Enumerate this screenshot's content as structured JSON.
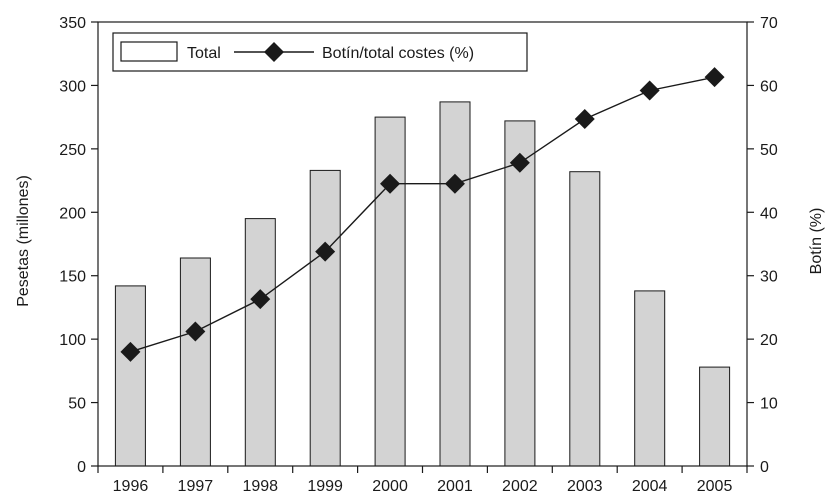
{
  "chart_data": {
    "type": "bar+line",
    "categories": [
      "1996",
      "1997",
      "1998",
      "1999",
      "2000",
      "2001",
      "2002",
      "2003",
      "2004",
      "2005"
    ],
    "series": [
      {
        "name": "Total",
        "type": "bar",
        "axis": "left",
        "values": [
          142,
          164,
          195,
          233,
          275,
          287,
          272,
          232,
          138,
          78
        ],
        "color": "#d3d3d3"
      },
      {
        "name": "Botín/total costes (%)",
        "type": "line",
        "axis": "right",
        "values": [
          18,
          21.2,
          26.3,
          33.8,
          44.5,
          44.5,
          47.8,
          54.7,
          59.2,
          61.3
        ],
        "color": "#1a1a1a"
      }
    ],
    "ylabel": "Pesetas (millones)",
    "y2label": "Botín (%)",
    "ylim": [
      0,
      350
    ],
    "y2lim": [
      0,
      70
    ],
    "yticks": [
      0,
      50,
      100,
      150,
      200,
      250,
      300,
      350
    ],
    "y2ticks": [
      0,
      10,
      20,
      30,
      40,
      50,
      60,
      70
    ],
    "legend_position": "top-left",
    "grid": false
  }
}
